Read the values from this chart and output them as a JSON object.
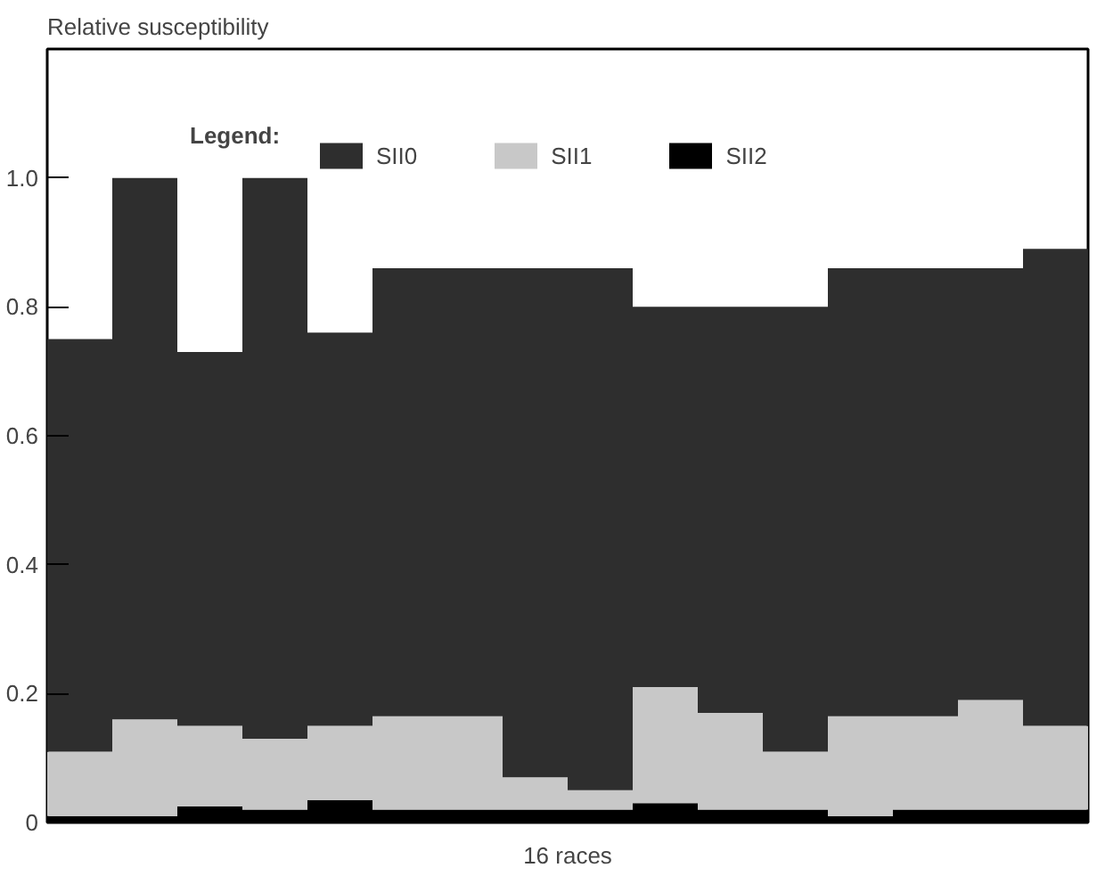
{
  "chart_data": {
    "type": "bar",
    "stacked": true,
    "ylabel": "Relative susceptibility",
    "xlabel": "16 races",
    "legend_title": "Legend:",
    "legend": "top",
    "grid": false,
    "categories": [
      null,
      null,
      null,
      null,
      null,
      null,
      null,
      null,
      null,
      null,
      null,
      null,
      null,
      null,
      null,
      null
    ],
    "ylim": [
      0,
      1.2
    ],
    "yticks": [
      0,
      0.2,
      0.4,
      0.6,
      0.8,
      {
        "value": 1.0,
        "label": "1.0"
      }
    ],
    "series": [
      {
        "name": "SII2",
        "color": "#000000",
        "values": [
          0.01,
          0.01,
          0.025,
          0.02,
          0.035,
          0.02,
          0.02,
          0.02,
          0.02,
          0.03,
          0.02,
          0.02,
          0.01,
          0.02,
          0.02,
          0.02
        ]
      },
      {
        "name": "SII1",
        "color": "#c8c8c8",
        "values": [
          0.1,
          0.15,
          0.125,
          0.11,
          0.115,
          0.145,
          0.145,
          0.05,
          0.03,
          0.18,
          0.15,
          0.09,
          0.155,
          0.145,
          0.17,
          0.13
        ]
      },
      {
        "name": "SII0",
        "color": "#2e2e2e",
        "values": [
          0.64,
          0.84,
          0.58,
          0.87,
          0.61,
          0.695,
          0.695,
          0.79,
          0.81,
          0.59,
          0.63,
          0.69,
          0.695,
          0.695,
          0.67,
          0.74
        ]
      }
    ]
  }
}
